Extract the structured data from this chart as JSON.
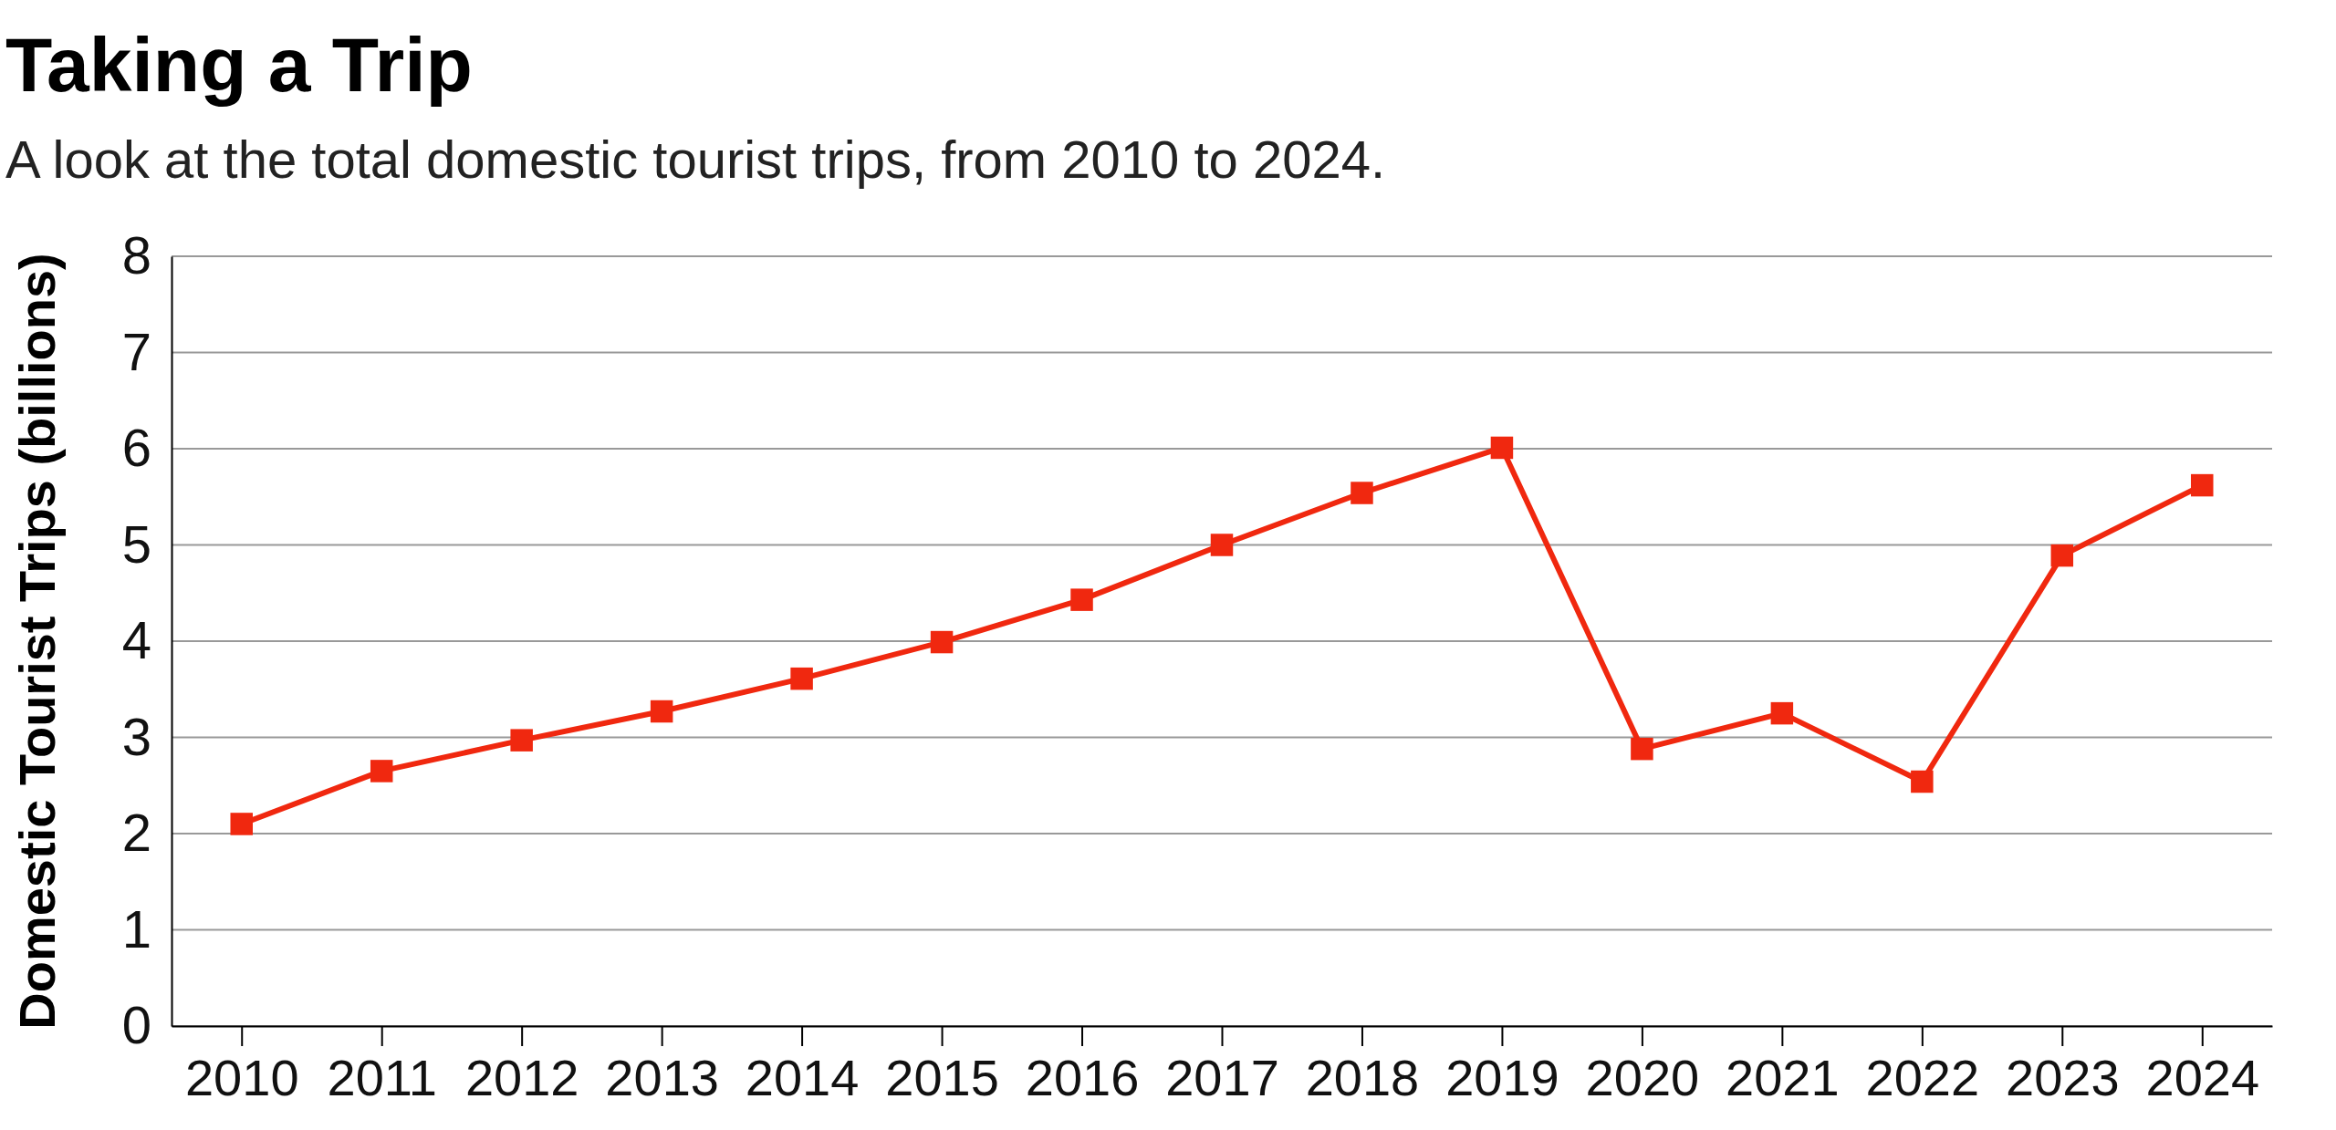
{
  "chart_data": {
    "type": "line",
    "title": "Taking a Trip",
    "subtitle": "A look at the total domestic tourist trips, from 2010 to 2024.",
    "ylabel": "Domestic Tourist Trips (billions)",
    "categories": [
      "2010",
      "2011",
      "2012",
      "2013",
      "2014",
      "2015",
      "2016",
      "2017",
      "2018",
      "2019",
      "2020",
      "2021",
      "2022",
      "2023",
      "2024"
    ],
    "series": [
      {
        "color": "#f0280f",
        "values": [
          2.1,
          2.65,
          2.97,
          3.27,
          3.61,
          3.99,
          4.43,
          5.0,
          5.54,
          6.01,
          2.88,
          3.25,
          2.54,
          4.89,
          5.62
        ]
      }
    ],
    "ylim": [
      0,
      8
    ],
    "yticks": [
      0,
      1,
      2,
      3,
      4,
      5,
      6,
      7,
      8
    ],
    "grid": "y",
    "marker": "square",
    "line_style": "solid"
  }
}
